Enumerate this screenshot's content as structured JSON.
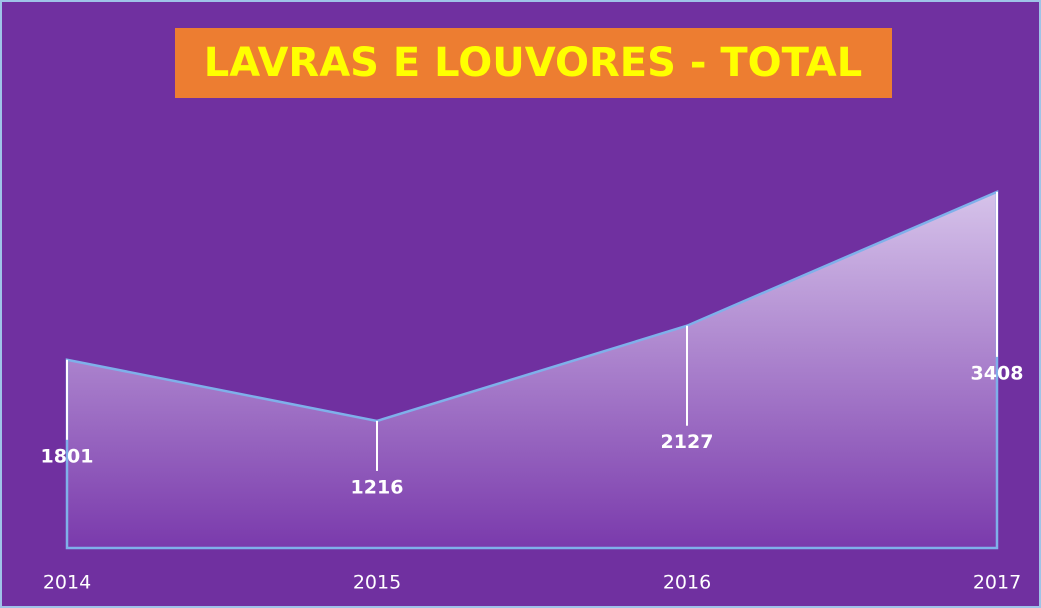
{
  "chart_data": {
    "type": "area",
    "title": "LAVRAS E LOUVORES - TOTAL",
    "categories": [
      "2014",
      "2015",
      "2016",
      "2017"
    ],
    "values": [
      1801,
      1216,
      2127,
      3408
    ],
    "ylim": [
      0,
      4000
    ],
    "color": "#7030a0"
  }
}
